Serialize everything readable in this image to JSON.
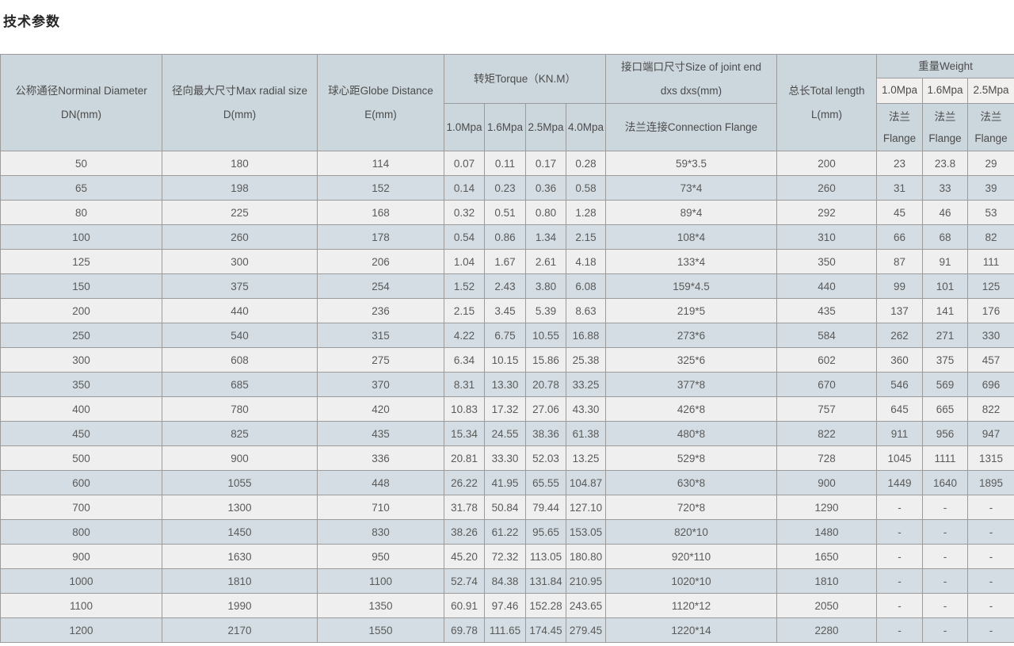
{
  "page": {
    "title": "技术参数"
  },
  "colors": {
    "header_bg": "#ccd6dd",
    "header_sub_light_bg": "#f1f0ee",
    "row_light_bg": "#efefef",
    "row_blue_bg": "#d4dde3",
    "border": "#9b9b9b",
    "text": "#5a5a5a",
    "title_text": "#262626"
  },
  "table": {
    "header": {
      "dn": "公称通径Norminal Diameter\nDN(mm)",
      "d": "径向最大尺寸Max radial size\nD(mm)",
      "e": "球心距Globe Distance\nE(mm)",
      "torque": "转矩Torque（KN.M）",
      "torque_subs": [
        "1.0Mpa",
        "1.6Mpa",
        "2.5Mpa",
        "4.0Mpa"
      ],
      "joint": "接口端口尺寸Size of joint end\ndxs dxs(mm)",
      "joint_sub": "法兰连接Connection Flange",
      "length": "总长Total length\nL(mm)",
      "weight": "重量Weight",
      "weight_subs": [
        "1.0Mpa",
        "1.6Mpa",
        "2.5Mpa"
      ],
      "flange": "法兰\nFlange"
    },
    "rows": [
      [
        "50",
        "180",
        "114",
        "0.07",
        "0.11",
        "0.17",
        "0.28",
        "59*3.5",
        "200",
        "23",
        "23.8",
        "29"
      ],
      [
        "65",
        "198",
        "152",
        "0.14",
        "0.23",
        "0.36",
        "0.58",
        "73*4",
        "260",
        "31",
        "33",
        "39"
      ],
      [
        "80",
        "225",
        "168",
        "0.32",
        "0.51",
        "0.80",
        "1.28",
        "89*4",
        "292",
        "45",
        "46",
        "53"
      ],
      [
        "100",
        "260",
        "178",
        "0.54",
        "0.86",
        "1.34",
        "2.15",
        "108*4",
        "310",
        "66",
        "68",
        "82"
      ],
      [
        "125",
        "300",
        "206",
        "1.04",
        "1.67",
        "2.61",
        "4.18",
        "133*4",
        "350",
        "87",
        "91",
        "111"
      ],
      [
        "150",
        "375",
        "254",
        "1.52",
        "2.43",
        "3.80",
        "6.08",
        "159*4.5",
        "440",
        "99",
        "101",
        "125"
      ],
      [
        "200",
        "440",
        "236",
        "2.15",
        "3.45",
        "5.39",
        "8.63",
        "219*5",
        "435",
        "137",
        "141",
        "176"
      ],
      [
        "250",
        "540",
        "315",
        "4.22",
        "6.75",
        "10.55",
        "16.88",
        "273*6",
        "584",
        "262",
        "271",
        "330"
      ],
      [
        "300",
        "608",
        "275",
        "6.34",
        "10.15",
        "15.86",
        "25.38",
        "325*6",
        "602",
        "360",
        "375",
        "457"
      ],
      [
        "350",
        "685",
        "370",
        "8.31",
        "13.30",
        "20.78",
        "33.25",
        "377*8",
        "670",
        "546",
        "569",
        "696"
      ],
      [
        "400",
        "780",
        "420",
        "10.83",
        "17.32",
        "27.06",
        "43.30",
        "426*8",
        "757",
        "645",
        "665",
        "822"
      ],
      [
        "450",
        "825",
        "435",
        "15.34",
        "24.55",
        "38.36",
        "61.38",
        "480*8",
        "822",
        "911",
        "956",
        "947"
      ],
      [
        "500",
        "900",
        "336",
        "20.81",
        "33.30",
        "52.03",
        "13.25",
        "529*8",
        "728",
        "1045",
        "1111",
        "1315"
      ],
      [
        "600",
        "1055",
        "448",
        "26.22",
        "41.95",
        "65.55",
        "104.87",
        "630*8",
        "900",
        "1449",
        "1640",
        "1895"
      ],
      [
        "700",
        "1300",
        "710",
        "31.78",
        "50.84",
        "79.44",
        "127.10",
        "720*8",
        "1290",
        "-",
        "-",
        "-"
      ],
      [
        "800",
        "1450",
        "830",
        "38.26",
        "61.22",
        "95.65",
        "153.05",
        "820*10",
        "1480",
        "-",
        "-",
        "-"
      ],
      [
        "900",
        "1630",
        "950",
        "45.20",
        "72.32",
        "113.05",
        "180.80",
        "920*110",
        "1650",
        "-",
        "-",
        "-"
      ],
      [
        "1000",
        "1810",
        "1100",
        "52.74",
        "84.38",
        "131.84",
        "210.95",
        "1020*10",
        "1810",
        "-",
        "-",
        "-"
      ],
      [
        "1100",
        "1990",
        "1350",
        "60.91",
        "97.46",
        "152.28",
        "243.65",
        "1120*12",
        "2050",
        "-",
        "-",
        "-"
      ],
      [
        "1200",
        "2170",
        "1550",
        "69.78",
        "111.65",
        "174.45",
        "279.45",
        "1220*14",
        "2280",
        "-",
        "-",
        "-"
      ]
    ]
  }
}
